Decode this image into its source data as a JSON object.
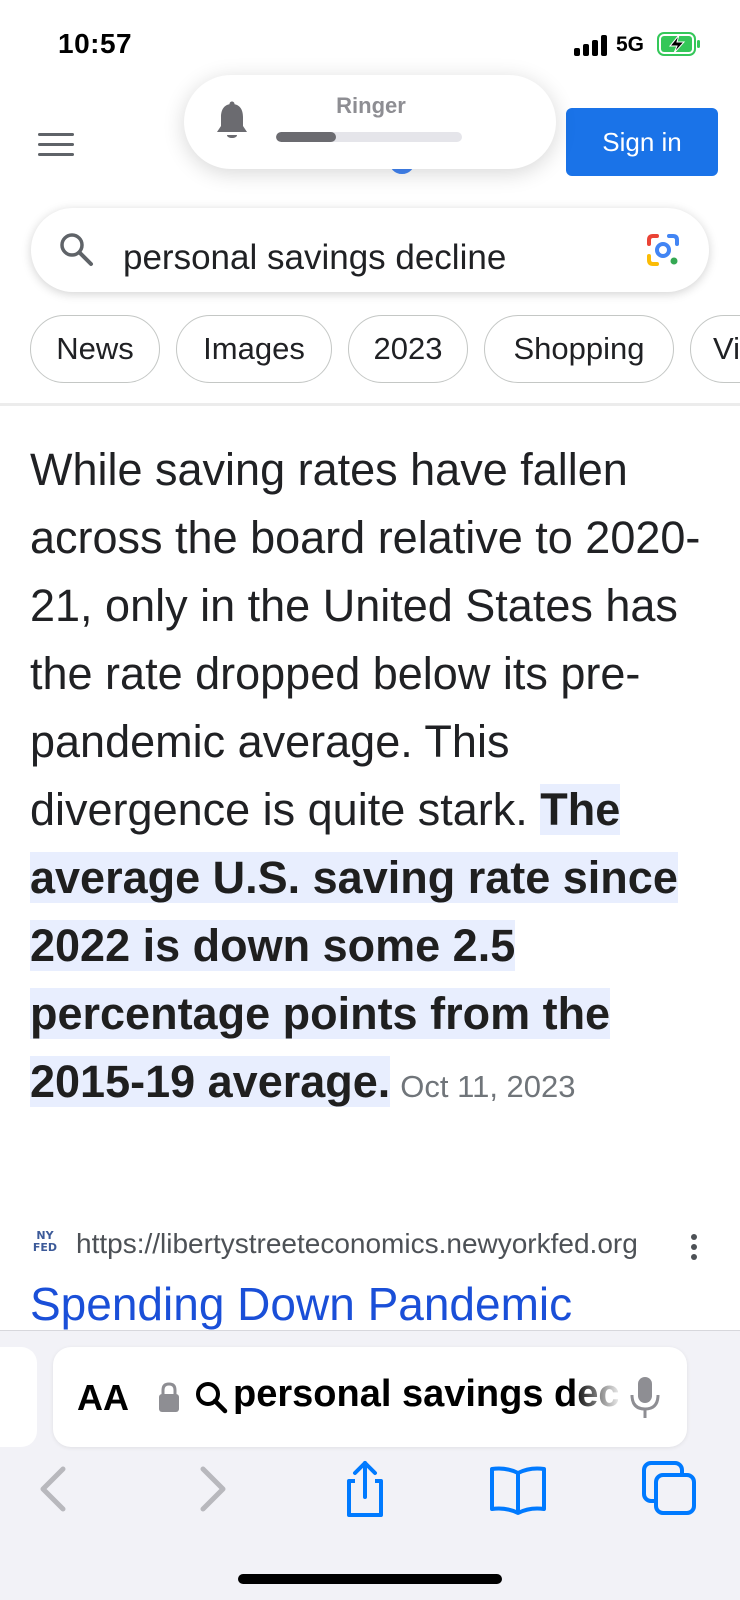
{
  "status_bar": {
    "time": "10:57",
    "network": "5G",
    "battery_state": "charging"
  },
  "ringer": {
    "label": "Ringer",
    "level_fraction": 0.32
  },
  "header": {
    "sign_in_label": "Sign in"
  },
  "search": {
    "query": "personal savings decline"
  },
  "chips": [
    "News",
    "Images",
    "2023",
    "Shopping",
    "Vi"
  ],
  "snippet": {
    "text_plain": "While saving rates have fallen across the board relative to 2020-21, only in the United States has the rate dropped below its pre-pandemic average. This divergence is quite stark. ",
    "text_highlight": "The average U.S. saving rate since 2022 is down some 2.5 percentage points from the 2015-19 average.",
    "date": "Oct 11, 2023"
  },
  "source": {
    "favicon_text": "NY FED",
    "url": "https://libertystreeteconomics.newyorkfed.org",
    "title": "Spending Down Pandemic"
  },
  "safari": {
    "aa_label": "AA",
    "address_text": "personal savings decline"
  },
  "colors": {
    "accent_blue": "#1a73e8",
    "link_blue": "#1a4fd8",
    "highlight_bg": "#e8eefe",
    "safari_blue": "#007aff"
  }
}
